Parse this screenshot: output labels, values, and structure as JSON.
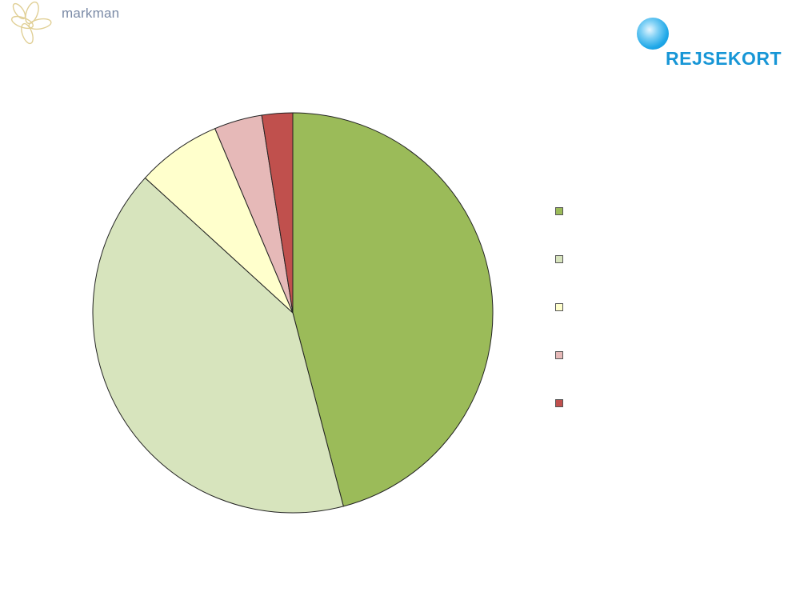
{
  "header": {
    "left_logo_text": "markman",
    "right_logo_text": "REJSEKORT"
  },
  "chart_data": {
    "type": "pie",
    "title": "",
    "series": [
      {
        "values": [
          46.2,
          41.1,
          6.9,
          3.9,
          2.5
        ]
      }
    ],
    "categories": [
      "",
      "",
      "",
      "",
      ""
    ],
    "colors": [
      "#9bbb59",
      "#d7e4bd",
      "#ffffcc",
      "#e6b9b8",
      "#c0504d"
    ],
    "legend_position": "right",
    "start_angle": "12 o'clock",
    "direction": "clockwise"
  }
}
